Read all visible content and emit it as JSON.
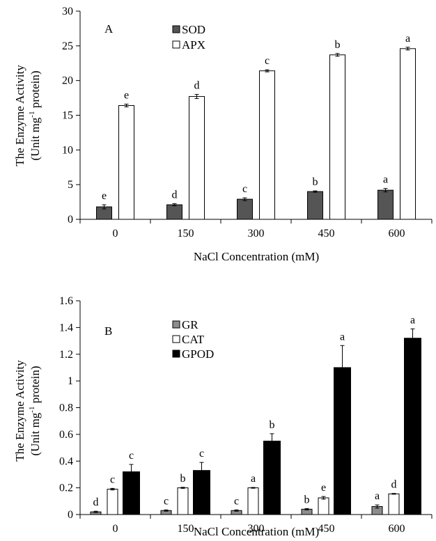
{
  "chart_data": [
    {
      "type": "bar",
      "panel_label": "A",
      "categories": [
        "0",
        "150",
        "300",
        "450",
        "600"
      ],
      "series": [
        {
          "name": "SOD",
          "values": [
            1.8,
            2.1,
            2.9,
            4.0,
            4.2
          ],
          "errors": [
            0.3,
            0.15,
            0.2,
            0.1,
            0.25
          ],
          "letters": [
            "e",
            "d",
            "c",
            "b",
            "a"
          ],
          "color": "#555555"
        },
        {
          "name": "APX",
          "values": [
            16.4,
            17.7,
            21.4,
            23.7,
            24.6
          ],
          "errors": [
            0.2,
            0.3,
            0.15,
            0.2,
            0.2
          ],
          "letters": [
            "e",
            "d",
            "c",
            "b",
            "a"
          ],
          "color": "#ffffff"
        }
      ],
      "ylim": [
        0,
        30
      ],
      "yticks": [
        "0",
        "5",
        "10",
        "15",
        "20",
        "25",
        "30"
      ],
      "xlabel": "NaCl Concentration (mM)",
      "ylabel_line1": "The Enzyme Activity",
      "ylabel_line2_prefix": "(Unit mg",
      "ylabel_line2_sup": "-1",
      "ylabel_line2_suffix": " protein)",
      "legend": "top-left"
    },
    {
      "type": "bar",
      "panel_label": "B",
      "categories": [
        "0",
        "150",
        "300",
        "450",
        "600"
      ],
      "series": [
        {
          "name": "GR",
          "values": [
            0.02,
            0.03,
            0.03,
            0.04,
            0.06
          ],
          "errors": [
            0.005,
            0.005,
            0.005,
            0.005,
            0.012
          ],
          "letters": [
            "d",
            "c",
            "c",
            "b",
            "a"
          ],
          "color": "#8c8c8c"
        },
        {
          "name": "CAT",
          "values": [
            0.19,
            0.2,
            0.2,
            0.125,
            0.155
          ],
          "errors": [
            0.006,
            0.004,
            0.003,
            0.01,
            0.003
          ],
          "letters": [
            "c",
            "b",
            "a",
            "e",
            "d"
          ],
          "color": "#ffffff"
        },
        {
          "name": "GPOD",
          "values": [
            0.32,
            0.33,
            0.55,
            1.1,
            1.32
          ],
          "errors": [
            0.055,
            0.06,
            0.055,
            0.165,
            0.07
          ],
          "letters": [
            "c",
            "c",
            "b",
            "a",
            "a"
          ],
          "color": "#000000"
        }
      ],
      "ylim": [
        0,
        1.6
      ],
      "yticks": [
        "0",
        "0.2",
        "0.4",
        "0.6",
        "0.8",
        "1",
        "1.2",
        "1.4",
        "1.6"
      ],
      "xlabel": "NaCl Concentration (mM)",
      "ylabel_line1": "The Enzyme Activity",
      "ylabel_line2_prefix": "(Unit mg",
      "ylabel_line2_sup": "-1",
      "ylabel_line2_suffix": " protein)",
      "legend": "top-left"
    }
  ]
}
